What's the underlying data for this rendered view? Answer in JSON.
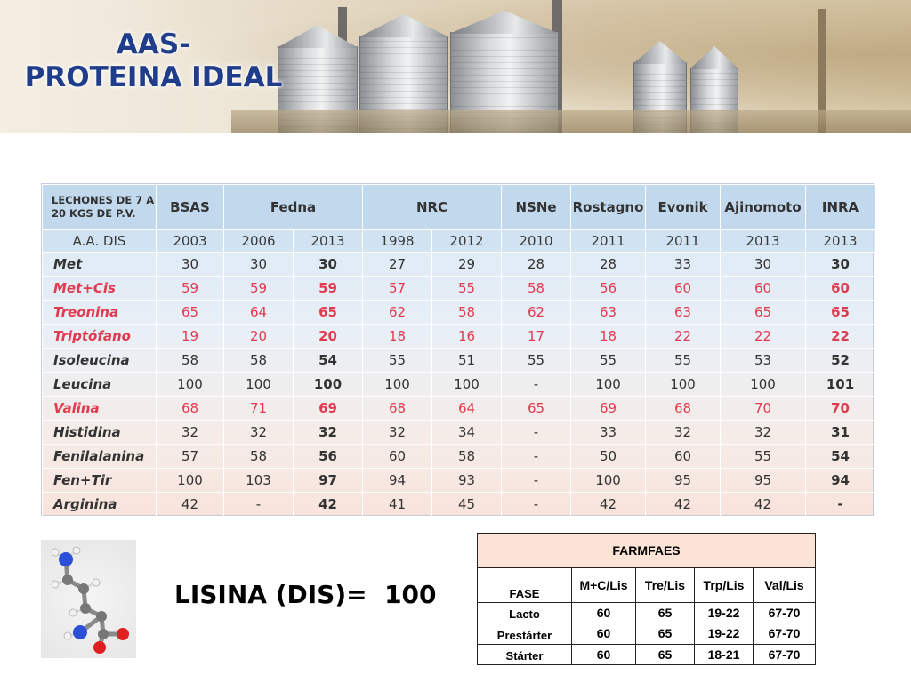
{
  "title": {
    "line1": "AAS-",
    "line2": "PROTEINA IDEAL"
  },
  "main_table": {
    "corner_label_line1": "LECHONES DE 7 A",
    "corner_label_line2": "20 KGS DE P.V.",
    "aa_label": "A.A. DIS",
    "sources": [
      {
        "name": "BSAS",
        "span": 1
      },
      {
        "name": "Fedna",
        "span": 2
      },
      {
        "name": "NRC",
        "span": 2
      },
      {
        "name": "NSNe",
        "span": 1
      },
      {
        "name": "Rostagno",
        "span": 1
      },
      {
        "name": "Evonik",
        "span": 1
      },
      {
        "name": "Ajinomoto",
        "span": 1
      },
      {
        "name": "INRA",
        "span": 1
      }
    ],
    "years": [
      "2003",
      "2006",
      "2013",
      "1998",
      "2012",
      "2010",
      "2011",
      "2011",
      "2013",
      "2013"
    ],
    "rows": [
      {
        "name": "Met",
        "red": false,
        "values": [
          "30",
          "30",
          "30",
          "27",
          "29",
          "28",
          "28",
          "33",
          "30",
          "30"
        ]
      },
      {
        "name": "Met+Cis",
        "red": true,
        "values": [
          "59",
          "59",
          "59",
          "57",
          "55",
          "58",
          "56",
          "60",
          "60",
          "60"
        ]
      },
      {
        "name": "Treonina",
        "red": true,
        "values": [
          "65",
          "64",
          "65",
          "62",
          "58",
          "62",
          "63",
          "63",
          "65",
          "65"
        ]
      },
      {
        "name": "Triptófano",
        "red": true,
        "values": [
          "19",
          "20",
          "20",
          "18",
          "16",
          "17",
          "18",
          "22",
          "22",
          "22"
        ]
      },
      {
        "name": "Isoleucina",
        "red": false,
        "values": [
          "58",
          "58",
          "54",
          "55",
          "51",
          "55",
          "55",
          "55",
          "53",
          "52"
        ]
      },
      {
        "name": "Leucina",
        "red": false,
        "values": [
          "100",
          "100",
          "100",
          "100",
          "100",
          "-",
          "100",
          "100",
          "100",
          "101"
        ]
      },
      {
        "name": "Valina",
        "red": true,
        "values": [
          "68",
          "71",
          "69",
          "68",
          "64",
          "65",
          "69",
          "68",
          "70",
          "70"
        ]
      },
      {
        "name": "Histidina",
        "red": false,
        "values": [
          "32",
          "32",
          "32",
          "32",
          "34",
          "-",
          "33",
          "32",
          "32",
          "31"
        ]
      },
      {
        "name": "Fenilalanina",
        "red": false,
        "values": [
          "57",
          "58",
          "56",
          "60",
          "58",
          "-",
          "50",
          "60",
          "55",
          "54"
        ]
      },
      {
        "name": "Fen+Tir",
        "red": false,
        "values": [
          "100",
          "103",
          "97",
          "94",
          "93",
          "-",
          "100",
          "95",
          "95",
          "94"
        ]
      },
      {
        "name": "Arginina",
        "red": false,
        "values": [
          "42",
          "-",
          "42",
          "41",
          "45",
          "-",
          "42",
          "42",
          "42",
          "-"
        ]
      }
    ],
    "bold_columns": [
      2,
      9
    ]
  },
  "lisina_text": "LISINA (DIS)=  100",
  "farmfaes": {
    "title": "FARMFAES",
    "headers": [
      "FASE",
      "M+C/Lis",
      "Tre/Lis",
      "Trp/Lis",
      "Val/Lis"
    ],
    "rows": [
      {
        "phase": "Lacto",
        "values": [
          "60",
          "65",
          "19-22",
          "67-70"
        ]
      },
      {
        "phase": "Prestárter",
        "values": [
          "60",
          "65",
          "19-22",
          "67-70"
        ]
      },
      {
        "phase": "Stárter",
        "values": [
          "60",
          "65",
          "18-21",
          "67-70"
        ]
      }
    ]
  },
  "colors": {
    "title": "#1f3d8a",
    "red_text": "#e23a4f",
    "farm_header_bg": "#fbe4d5"
  },
  "images": {
    "banner": "grain-silos-image",
    "molecule": "lysine-molecule-image"
  }
}
